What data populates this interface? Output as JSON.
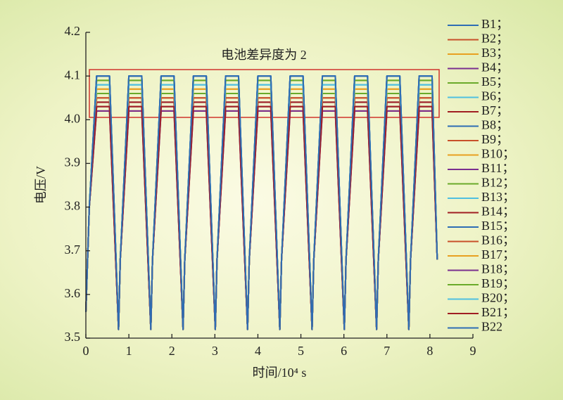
{
  "chart_data": {
    "type": "line",
    "annotation": "电池差异度为 2",
    "xlabel": "时间/10⁴ s",
    "ylabel": "电压/V",
    "xlim": [
      0,
      9
    ],
    "xticks": [
      0,
      1,
      2,
      3,
      4,
      5,
      6,
      7,
      8,
      9
    ],
    "ylim": [
      3.5,
      4.2
    ],
    "yticks": [
      3.5,
      3.6,
      3.7,
      3.8,
      3.9,
      {
        "value": 4,
        "label": "4.0"
      },
      4.1,
      4.2
    ],
    "x": [
      0,
      0.08,
      0.25,
      0.55,
      0.76,
      0.8,
      1.0,
      1.3,
      1.51,
      1.55,
      1.75,
      2.05,
      2.26,
      2.3,
      2.5,
      2.8,
      3.01,
      3.05,
      3.25,
      3.55,
      3.76,
      3.8,
      4.0,
      4.3,
      4.51,
      4.55,
      4.75,
      5.05,
      5.26,
      5.3,
      5.5,
      5.8,
      6.01,
      6.05,
      6.25,
      6.55,
      6.76,
      6.8,
      7.0,
      7.3,
      7.51,
      7.55,
      7.75,
      8.05,
      8.17
    ],
    "series": [
      {
        "name": "B1；",
        "color": "#2e6db4",
        "values": [
          3.56,
          3.8,
          4.1,
          4.1,
          3.52,
          3.68,
          4.1,
          4.1,
          3.52,
          3.68,
          4.1,
          4.1,
          3.52,
          3.68,
          4.1,
          4.1,
          3.52,
          3.68,
          4.1,
          4.1,
          3.52,
          3.68,
          4.1,
          4.1,
          3.52,
          3.68,
          4.1,
          4.1,
          3.52,
          3.68,
          4.1,
          4.1,
          3.52,
          3.68,
          4.1,
          4.1,
          3.52,
          3.68,
          4.1,
          4.1,
          3.52,
          3.68,
          4.1,
          4.1,
          3.68
        ]
      },
      {
        "name": "B2；",
        "color": "#c8502a",
        "values": [
          3.56,
          3.8,
          4.03,
          4.03,
          3.52,
          3.68,
          4.03,
          4.03,
          3.52,
          3.68,
          4.03,
          4.03,
          3.52,
          3.68,
          4.03,
          4.03,
          3.52,
          3.68,
          4.03,
          4.03,
          3.52,
          3.68,
          4.03,
          4.03,
          3.52,
          3.68,
          4.03,
          4.03,
          3.52,
          3.68,
          4.03,
          4.03,
          3.52,
          3.68,
          4.03,
          4.03,
          3.52,
          3.68,
          4.03,
          4.03,
          3.52,
          3.68,
          4.03,
          4.03,
          3.68
        ]
      },
      {
        "name": "B3；",
        "color": "#e8a020",
        "values": [
          3.56,
          3.8,
          4.06,
          4.06,
          3.52,
          3.68,
          4.06,
          4.06,
          3.52,
          3.68,
          4.06,
          4.06,
          3.52,
          3.68,
          4.06,
          4.06,
          3.52,
          3.68,
          4.06,
          4.06,
          3.52,
          3.68,
          4.06,
          4.06,
          3.52,
          3.68,
          4.06,
          4.06,
          3.52,
          3.68,
          4.06,
          4.06,
          3.52,
          3.68,
          4.06,
          4.06,
          3.52,
          3.68,
          4.06,
          4.06,
          3.52,
          3.68,
          4.06,
          4.06,
          3.68
        ]
      },
      {
        "name": "B4；",
        "color": "#7a2f8f",
        "values": [
          3.56,
          3.8,
          4.04,
          4.04,
          3.52,
          3.68,
          4.04,
          4.04,
          3.52,
          3.68,
          4.04,
          4.04,
          3.52,
          3.68,
          4.04,
          4.04,
          3.52,
          3.68,
          4.04,
          4.04,
          3.52,
          3.68,
          4.04,
          4.04,
          3.52,
          3.68,
          4.04,
          4.04,
          3.52,
          3.68,
          4.04,
          4.04,
          3.52,
          3.68,
          4.04,
          4.04,
          3.52,
          3.68,
          4.04,
          4.04,
          3.52,
          3.68,
          4.04,
          4.04,
          3.68
        ]
      },
      {
        "name": "B5；",
        "color": "#6aaa2a",
        "values": [
          3.56,
          3.8,
          4.09,
          4.09,
          3.52,
          3.68,
          4.09,
          4.09,
          3.52,
          3.68,
          4.09,
          4.09,
          3.52,
          3.68,
          4.09,
          4.09,
          3.52,
          3.68,
          4.09,
          4.09,
          3.52,
          3.68,
          4.09,
          4.09,
          3.52,
          3.68,
          4.09,
          4.09,
          3.52,
          3.68,
          4.09,
          4.09,
          3.52,
          3.68,
          4.09,
          4.09,
          3.52,
          3.68,
          4.09,
          4.09,
          3.52,
          3.68,
          4.09,
          4.09,
          3.68
        ]
      },
      {
        "name": "B6；",
        "color": "#4fc0e0",
        "values": [
          3.56,
          3.8,
          4.08,
          4.08,
          3.52,
          3.68,
          4.08,
          4.08,
          3.52,
          3.68,
          4.08,
          4.08,
          3.52,
          3.68,
          4.08,
          4.08,
          3.52,
          3.68,
          4.08,
          4.08,
          3.52,
          3.68,
          4.08,
          4.08,
          3.52,
          3.68,
          4.08,
          4.08,
          3.52,
          3.68,
          4.08,
          4.08,
          3.52,
          3.68,
          4.08,
          4.08,
          3.52,
          3.68,
          4.08,
          4.08,
          3.52,
          3.68,
          4.08,
          4.08,
          3.68
        ]
      },
      {
        "name": "B7；",
        "color": "#a01e22",
        "values": [
          3.56,
          3.8,
          4.02,
          4.02,
          3.52,
          3.68,
          4.02,
          4.02,
          3.52,
          3.68,
          4.02,
          4.02,
          3.52,
          3.68,
          4.02,
          4.02,
          3.52,
          3.68,
          4.02,
          4.02,
          3.52,
          3.68,
          4.02,
          4.02,
          3.52,
          3.68,
          4.02,
          4.02,
          3.52,
          3.68,
          4.02,
          4.02,
          3.52,
          3.68,
          4.02,
          4.02,
          3.52,
          3.68,
          4.02,
          4.02,
          3.52,
          3.68,
          4.02,
          4.02,
          3.68
        ]
      },
      {
        "name": "B8；",
        "color": "#2e6db4",
        "values": [
          3.56,
          3.8,
          4.1,
          4.1,
          3.52,
          3.68,
          4.1,
          4.1,
          3.52,
          3.68,
          4.1,
          4.1,
          3.52,
          3.68,
          4.1,
          4.1,
          3.52,
          3.68,
          4.1,
          4.1,
          3.52,
          3.68,
          4.1,
          4.1,
          3.52,
          3.68,
          4.1,
          4.1,
          3.52,
          3.68,
          4.1,
          4.1,
          3.52,
          3.68,
          4.1,
          4.1,
          3.52,
          3.68,
          4.1,
          4.1,
          3.52,
          3.68,
          4.1,
          4.1,
          3.68
        ]
      },
      {
        "name": "B9；",
        "color": "#c8502a",
        "values": [
          3.56,
          3.8,
          4.05,
          4.05,
          3.52,
          3.68,
          4.05,
          4.05,
          3.52,
          3.68,
          4.05,
          4.05,
          3.52,
          3.68,
          4.05,
          4.05,
          3.52,
          3.68,
          4.05,
          4.05,
          3.52,
          3.68,
          4.05,
          4.05,
          3.52,
          3.68,
          4.05,
          4.05,
          3.52,
          3.68,
          4.05,
          4.05,
          3.52,
          3.68,
          4.05,
          4.05,
          3.52,
          3.68,
          4.05,
          4.05,
          3.52,
          3.68,
          4.05,
          4.05,
          3.68
        ]
      },
      {
        "name": "B10；",
        "color": "#e8a020",
        "values": [
          3.56,
          3.8,
          4.07,
          4.07,
          3.52,
          3.68,
          4.07,
          4.07,
          3.52,
          3.68,
          4.07,
          4.07,
          3.52,
          3.68,
          4.07,
          4.07,
          3.52,
          3.68,
          4.07,
          4.07,
          3.52,
          3.68,
          4.07,
          4.07,
          3.52,
          3.68,
          4.07,
          4.07,
          3.52,
          3.68,
          4.07,
          4.07,
          3.52,
          3.68,
          4.07,
          4.07,
          3.52,
          3.68,
          4.07,
          4.07,
          3.52,
          3.68,
          4.07,
          4.07,
          3.68
        ]
      },
      {
        "name": "B11；",
        "color": "#7a2f8f",
        "values": [
          3.56,
          3.8,
          4.03,
          4.03,
          3.52,
          3.68,
          4.03,
          4.03,
          3.52,
          3.68,
          4.03,
          4.03,
          3.52,
          3.68,
          4.03,
          4.03,
          3.52,
          3.68,
          4.03,
          4.03,
          3.52,
          3.68,
          4.03,
          4.03,
          3.52,
          3.68,
          4.03,
          4.03,
          3.52,
          3.68,
          4.03,
          4.03,
          3.52,
          3.68,
          4.03,
          4.03,
          3.52,
          3.68,
          4.03,
          4.03,
          3.52,
          3.68,
          4.03,
          4.03,
          3.68
        ]
      },
      {
        "name": "B12；",
        "color": "#6aaa2a",
        "values": [
          3.56,
          3.8,
          4.06,
          4.06,
          3.52,
          3.68,
          4.06,
          4.06,
          3.52,
          3.68,
          4.06,
          4.06,
          3.52,
          3.68,
          4.06,
          4.06,
          3.52,
          3.68,
          4.06,
          4.06,
          3.52,
          3.68,
          4.06,
          4.06,
          3.52,
          3.68,
          4.06,
          4.06,
          3.52,
          3.68,
          4.06,
          4.06,
          3.52,
          3.68,
          4.06,
          4.06,
          3.52,
          3.68,
          4.06,
          4.06,
          3.52,
          3.68,
          4.06,
          4.06,
          3.68
        ]
      },
      {
        "name": "B13；",
        "color": "#4fc0e0",
        "values": [
          3.56,
          3.8,
          4.08,
          4.08,
          3.52,
          3.68,
          4.08,
          4.08,
          3.52,
          3.68,
          4.08,
          4.08,
          3.52,
          3.68,
          4.08,
          4.08,
          3.52,
          3.68,
          4.08,
          4.08,
          3.52,
          3.68,
          4.08,
          4.08,
          3.52,
          3.68,
          4.08,
          4.08,
          3.52,
          3.68,
          4.08,
          4.08,
          3.52,
          3.68,
          4.08,
          4.08,
          3.52,
          3.68,
          4.08,
          4.08,
          3.52,
          3.68,
          4.08,
          4.08,
          3.68
        ]
      },
      {
        "name": "B14；",
        "color": "#a01e22",
        "values": [
          3.56,
          3.8,
          4.04,
          4.04,
          3.52,
          3.68,
          4.04,
          4.04,
          3.52,
          3.68,
          4.04,
          4.04,
          3.52,
          3.68,
          4.04,
          4.04,
          3.52,
          3.68,
          4.04,
          4.04,
          3.52,
          3.68,
          4.04,
          4.04,
          3.52,
          3.68,
          4.04,
          4.04,
          3.52,
          3.68,
          4.04,
          4.04,
          3.52,
          3.68,
          4.04,
          4.04,
          3.52,
          3.68,
          4.04,
          4.04,
          3.52,
          3.68,
          4.04,
          4.04,
          3.68
        ]
      },
      {
        "name": "B15；",
        "color": "#2e6db4",
        "values": [
          3.56,
          3.8,
          4.1,
          4.1,
          3.52,
          3.68,
          4.1,
          4.1,
          3.52,
          3.68,
          4.1,
          4.1,
          3.52,
          3.68,
          4.1,
          4.1,
          3.52,
          3.68,
          4.1,
          4.1,
          3.52,
          3.68,
          4.1,
          4.1,
          3.52,
          3.68,
          4.1,
          4.1,
          3.52,
          3.68,
          4.1,
          4.1,
          3.52,
          3.68,
          4.1,
          4.1,
          3.52,
          3.68,
          4.1,
          4.1,
          3.52,
          3.68,
          4.1,
          4.1,
          3.68
        ]
      },
      {
        "name": "B16；",
        "color": "#c8502a",
        "values": [
          3.56,
          3.8,
          4.05,
          4.05,
          3.52,
          3.68,
          4.05,
          4.05,
          3.52,
          3.68,
          4.05,
          4.05,
          3.52,
          3.68,
          4.05,
          4.05,
          3.52,
          3.68,
          4.05,
          4.05,
          3.52,
          3.68,
          4.05,
          4.05,
          3.52,
          3.68,
          4.05,
          4.05,
          3.52,
          3.68,
          4.05,
          4.05,
          3.52,
          3.68,
          4.05,
          4.05,
          3.52,
          3.68,
          4.05,
          4.05,
          3.52,
          3.68,
          4.05,
          4.05,
          3.68
        ]
      },
      {
        "name": "B17；",
        "color": "#e8a020",
        "values": [
          3.56,
          3.8,
          4.07,
          4.07,
          3.52,
          3.68,
          4.07,
          4.07,
          3.52,
          3.68,
          4.07,
          4.07,
          3.52,
          3.68,
          4.07,
          4.07,
          3.52,
          3.68,
          4.07,
          4.07,
          3.52,
          3.68,
          4.07,
          4.07,
          3.52,
          3.68,
          4.07,
          4.07,
          3.52,
          3.68,
          4.07,
          4.07,
          3.52,
          3.68,
          4.07,
          4.07,
          3.52,
          3.68,
          4.07,
          4.07,
          3.52,
          3.68,
          4.07,
          4.07,
          3.68
        ]
      },
      {
        "name": "B18；",
        "color": "#7a2f8f",
        "values": [
          3.56,
          3.8,
          4.02,
          4.02,
          3.52,
          3.68,
          4.02,
          4.02,
          3.52,
          3.68,
          4.02,
          4.02,
          3.52,
          3.68,
          4.02,
          4.02,
          3.52,
          3.68,
          4.02,
          4.02,
          3.52,
          3.68,
          4.02,
          4.02,
          3.52,
          3.68,
          4.02,
          4.02,
          3.52,
          3.68,
          4.02,
          4.02,
          3.52,
          3.68,
          4.02,
          4.02,
          3.52,
          3.68,
          4.02,
          4.02,
          3.52,
          3.68,
          4.02,
          4.02,
          3.68
        ]
      },
      {
        "name": "B19；",
        "color": "#6aaa2a",
        "values": [
          3.56,
          3.8,
          4.09,
          4.09,
          3.52,
          3.68,
          4.09,
          4.09,
          3.52,
          3.68,
          4.09,
          4.09,
          3.52,
          3.68,
          4.09,
          4.09,
          3.52,
          3.68,
          4.09,
          4.09,
          3.52,
          3.68,
          4.09,
          4.09,
          3.52,
          3.68,
          4.09,
          4.09,
          3.52,
          3.68,
          4.09,
          4.09,
          3.52,
          3.68,
          4.09,
          4.09,
          3.52,
          3.68,
          4.09,
          4.09,
          3.52,
          3.68,
          4.09,
          4.09,
          3.68
        ]
      },
      {
        "name": "B20；",
        "color": "#4fc0e0",
        "values": [
          3.56,
          3.8,
          4.08,
          4.08,
          3.52,
          3.68,
          4.08,
          4.08,
          3.52,
          3.68,
          4.08,
          4.08,
          3.52,
          3.68,
          4.08,
          4.08,
          3.52,
          3.68,
          4.08,
          4.08,
          3.52,
          3.68,
          4.08,
          4.08,
          3.52,
          3.68,
          4.08,
          4.08,
          3.52,
          3.68,
          4.08,
          4.08,
          3.52,
          3.68,
          4.08,
          4.08,
          3.52,
          3.68,
          4.08,
          4.08,
          3.52,
          3.68,
          4.08,
          4.08,
          3.68
        ]
      },
      {
        "name": "B21；",
        "color": "#a01e22",
        "values": [
          3.56,
          3.8,
          4.03,
          4.03,
          3.52,
          3.68,
          4.03,
          4.03,
          3.52,
          3.68,
          4.03,
          4.03,
          3.52,
          3.68,
          4.03,
          4.03,
          3.52,
          3.68,
          4.03,
          4.03,
          3.52,
          3.68,
          4.03,
          4.03,
          3.52,
          3.68,
          4.03,
          4.03,
          3.52,
          3.68,
          4.03,
          4.03,
          3.52,
          3.68,
          4.03,
          4.03,
          3.52,
          3.68,
          4.03,
          4.03,
          3.52,
          3.68,
          4.03,
          4.03,
          3.68
        ]
      },
      {
        "name": "B22",
        "color": "#2e6db4",
        "values": [
          3.56,
          3.8,
          4.1,
          4.1,
          3.52,
          3.68,
          4.1,
          4.1,
          3.52,
          3.68,
          4.1,
          4.1,
          3.52,
          3.68,
          4.1,
          4.1,
          3.52,
          3.68,
          4.1,
          4.1,
          3.52,
          3.68,
          4.1,
          4.1,
          3.52,
          3.68,
          4.1,
          4.1,
          3.52,
          3.68,
          4.1,
          4.1,
          3.52,
          3.68,
          4.1,
          4.1,
          3.52,
          3.68,
          4.1,
          4.1,
          3.52,
          3.68,
          4.1,
          4.1,
          3.68
        ]
      }
    ]
  }
}
